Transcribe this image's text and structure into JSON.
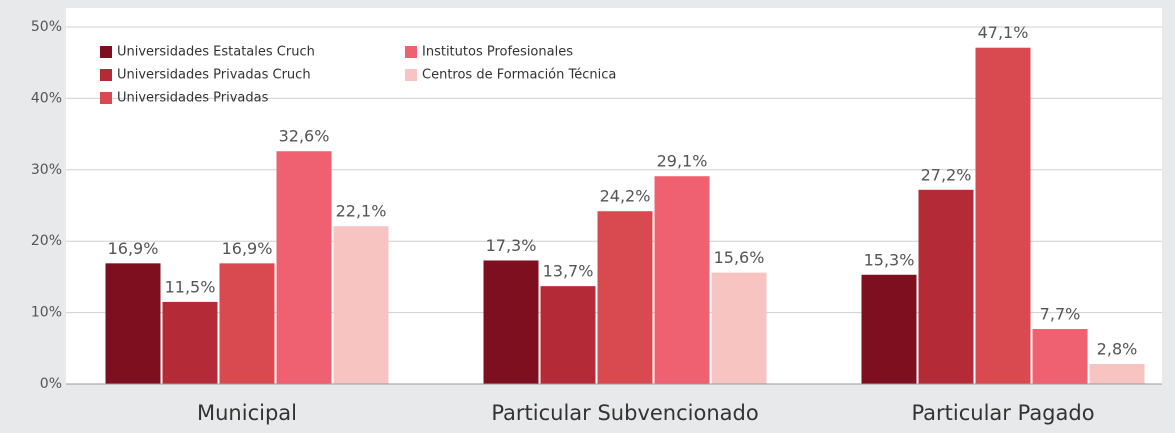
{
  "chart_data": {
    "type": "bar",
    "categories": [
      "Municipal",
      "Particular Subvencionado",
      "Particular Pagado"
    ],
    "series": [
      {
        "name": "Universidades Estatales Cruch",
        "color": "#7d0f1e",
        "values": [
          16.9,
          17.3,
          15.3
        ],
        "value_labels": [
          "16,9%",
          "17,3%",
          "15,3%"
        ]
      },
      {
        "name": "Universidades Privadas Cruch",
        "color": "#b52a37",
        "values": [
          11.5,
          13.7,
          27.2
        ],
        "value_labels": [
          "11,5%",
          "13,7%",
          "27,2%"
        ]
      },
      {
        "name": "Universidades Privadas",
        "color": "#d94a50",
        "values": [
          16.9,
          24.2,
          47.1
        ],
        "value_labels": [
          "16,9%",
          "24,2%",
          "47,1%"
        ]
      },
      {
        "name": "Institutos Profesionales",
        "color": "#ef6171",
        "values": [
          32.6,
          29.1,
          7.7
        ],
        "value_labels": [
          "32,6%",
          "29,1%",
          "7,7%"
        ]
      },
      {
        "name": "Centros de Formación Técnica",
        "color": "#f8c4c2",
        "values": [
          22.1,
          15.6,
          2.8
        ],
        "value_labels": [
          "22,1%",
          "15,6%",
          "2,8%"
        ]
      }
    ],
    "ylim": [
      0,
      50
    ],
    "yticks": [
      {
        "value": 0,
        "label": "0%"
      },
      {
        "value": 10,
        "label": "10%"
      },
      {
        "value": 20,
        "label": "20%"
      },
      {
        "value": 30,
        "label": "30%"
      },
      {
        "value": 40,
        "label": "40%"
      },
      {
        "value": 50,
        "label": "50%"
      }
    ],
    "grid": true
  }
}
